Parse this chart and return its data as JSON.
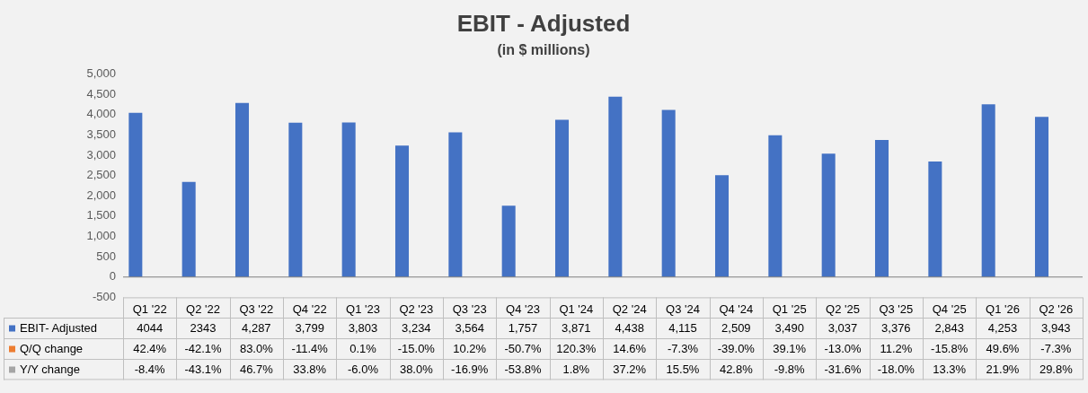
{
  "chart_data": {
    "type": "bar",
    "title": "EBIT - Adjusted",
    "subtitle": "(in $ millions)",
    "categories": [
      "Q1 '22",
      "Q2 '22",
      "Q3 '22",
      "Q4 '22",
      "Q1 '23",
      "Q2 '23",
      "Q3 '23",
      "Q4 '23",
      "Q1 '24",
      "Q2 '24",
      "Q3 '24",
      "Q4 '24",
      "Q1 '25",
      "Q2 '25",
      "Q3 '25",
      "Q4 '25",
      "Q1 '26",
      "Q2 '26"
    ],
    "series": [
      {
        "name": "EBIT- Adjusted",
        "color": "#4472c4",
        "values": [
          4044,
          2343,
          4287,
          3799,
          3803,
          3234,
          3564,
          1757,
          3871,
          4438,
          4115,
          2509,
          3490,
          3037,
          3376,
          2843,
          4253,
          3943
        ],
        "value_labels": [
          "4044",
          "2343",
          "4,287",
          "3,799",
          "3,803",
          "3,234",
          "3,564",
          "1,757",
          "3,871",
          "4,438",
          "4,115",
          "2,509",
          "3,490",
          "3,037",
          "3,376",
          "2,843",
          "4,253",
          "3,943"
        ]
      },
      {
        "name": "Q/Q change",
        "color": "#ed7d31",
        "values": [
          0.424,
          -0.421,
          0.83,
          -0.114,
          0.001,
          -0.15,
          0.102,
          -0.507,
          1.203,
          0.146,
          -0.073,
          -0.39,
          0.391,
          -0.13,
          0.112,
          -0.158,
          0.496,
          -0.073
        ],
        "value_labels": [
          "42.4%",
          "-42.1%",
          "83.0%",
          "-11.4%",
          "0.1%",
          "-15.0%",
          "10.2%",
          "-50.7%",
          "120.3%",
          "14.6%",
          "-7.3%",
          "-39.0%",
          "39.1%",
          "-13.0%",
          "11.2%",
          "-15.8%",
          "49.6%",
          "-7.3%"
        ]
      },
      {
        "name": "Y/Y change",
        "color": "#a5a5a5",
        "values": [
          -0.084,
          -0.431,
          0.467,
          0.338,
          -0.06,
          0.38,
          -0.169,
          -0.538,
          0.018,
          0.372,
          0.155,
          0.428,
          -0.098,
          -0.316,
          -0.18,
          0.133,
          0.219,
          0.298
        ],
        "value_labels": [
          "-8.4%",
          "-43.1%",
          "46.7%",
          "33.8%",
          "-6.0%",
          "38.0%",
          "-16.9%",
          "-53.8%",
          "1.8%",
          "37.2%",
          "15.5%",
          "42.8%",
          "-9.8%",
          "-31.6%",
          "-18.0%",
          "13.3%",
          "21.9%",
          "29.8%"
        ]
      }
    ],
    "legend": "bottom",
    "ylim": [
      -500,
      5000
    ],
    "yticks": [
      -500,
      0,
      500,
      {
        "value": 1000,
        "label": "1,000"
      },
      {
        "value": 1500,
        "label": "1,500"
      },
      {
        "value": 2000,
        "label": "2,000"
      },
      {
        "value": 2500,
        "label": "2,500"
      },
      {
        "value": 3000,
        "label": "3,000"
      },
      {
        "value": 3500,
        "label": "3,500"
      },
      {
        "value": 4000,
        "label": "4,000"
      },
      {
        "value": 4500,
        "label": "4,500"
      },
      {
        "value": 5000,
        "label": "5,000"
      }
    ]
  }
}
